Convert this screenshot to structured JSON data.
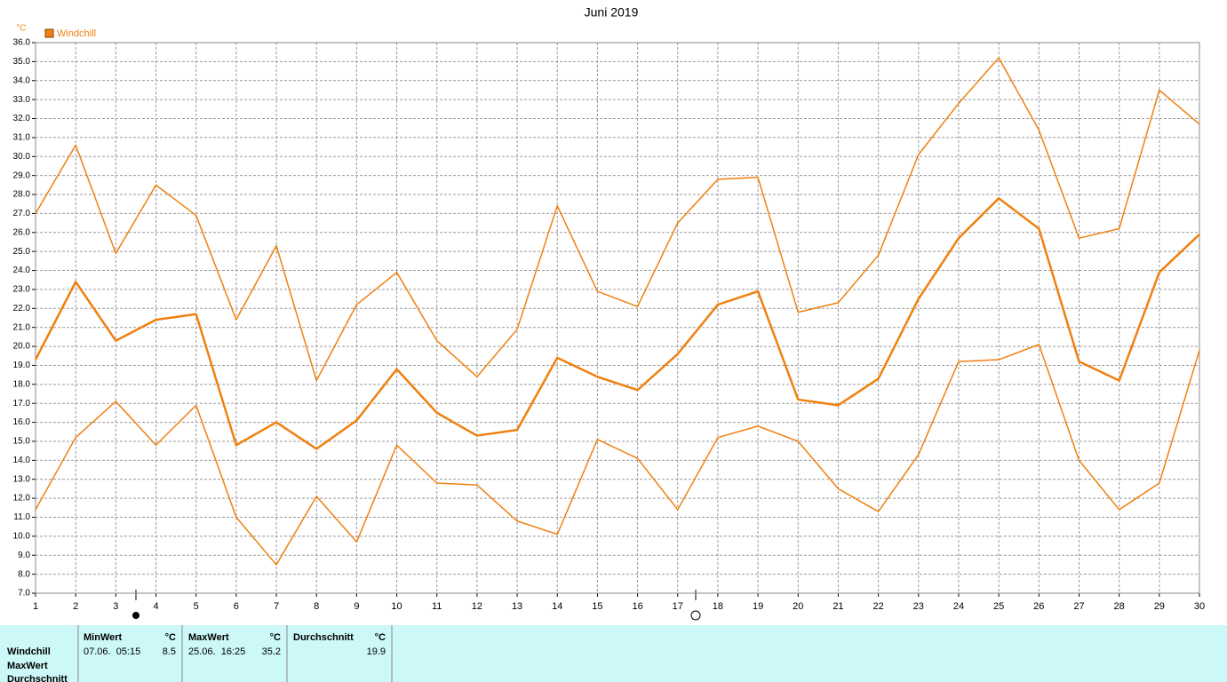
{
  "chart_data": {
    "type": "line",
    "title": "Juni 2019",
    "y_unit": "°C",
    "categories": [
      "1",
      "2",
      "3",
      "4",
      "5",
      "6",
      "7",
      "8",
      "9",
      "10",
      "11",
      "12",
      "13",
      "14",
      "15",
      "16",
      "17",
      "18",
      "19",
      "20",
      "21",
      "22",
      "23",
      "24",
      "25",
      "26",
      "27",
      "28",
      "29",
      "30"
    ],
    "series": [
      {
        "name": "Windchill",
        "color": "#f08010",
        "width": 2.5,
        "values": [
          19.3,
          23.4,
          20.3,
          21.4,
          21.7,
          14.8,
          16.0,
          14.6,
          16.1,
          18.8,
          16.5,
          15.3,
          15.6,
          19.4,
          18.4,
          17.7,
          19.6,
          22.2,
          22.9,
          17.2,
          16.9,
          18.3,
          22.5,
          25.7,
          27.8,
          26.2,
          19.2,
          18.2,
          23.9,
          25.9
        ]
      },
      {
        "color": "#f08010",
        "width": 1.5,
        "values": [
          27.0,
          30.6,
          24.9,
          28.5,
          26.9,
          21.4,
          25.3,
          18.2,
          22.2,
          23.9,
          20.3,
          18.4,
          20.9,
          27.4,
          22.9,
          22.1,
          26.5,
          28.8,
          28.9,
          21.8,
          22.3,
          24.8,
          30.1,
          32.8,
          35.2,
          31.4,
          25.7,
          26.2,
          33.5,
          31.7
        ]
      },
      {
        "color": "#f08010",
        "width": 1.5,
        "values": [
          11.4,
          15.2,
          17.1,
          14.8,
          16.9,
          11.0,
          8.5,
          12.1,
          9.7,
          14.8,
          12.8,
          12.7,
          10.8,
          10.1,
          15.1,
          14.1,
          11.4,
          15.2,
          15.8,
          15.0,
          12.5,
          11.3,
          14.3,
          19.2,
          19.3,
          20.1,
          14.0,
          11.4,
          12.8,
          19.8
        ]
      }
    ],
    "ylim": [
      7,
      36
    ],
    "yticks": [
      {
        "value": 7,
        "label": "7.0"
      },
      {
        "value": 8,
        "label": "8.0"
      },
      {
        "value": 9,
        "label": "9.0"
      },
      {
        "value": 10,
        "label": "10.0"
      },
      {
        "value": 11,
        "label": "11.0"
      },
      {
        "value": 12,
        "label": "12.0"
      },
      {
        "value": 13,
        "label": "13.0"
      },
      {
        "value": 14,
        "label": "14.0"
      },
      {
        "value": 15,
        "label": "15.0"
      },
      {
        "value": 16,
        "label": "16.0"
      },
      {
        "value": 17,
        "label": "17.0"
      },
      {
        "value": 18,
        "label": "18.0"
      },
      {
        "value": 19,
        "label": "19.0"
      },
      {
        "value": 20,
        "label": "20.0"
      },
      {
        "value": 21,
        "label": "21.0"
      },
      {
        "value": 22,
        "label": "22.0"
      },
      {
        "value": 23,
        "label": "23.0"
      },
      {
        "value": 24,
        "label": "24.0"
      },
      {
        "value": 25,
        "label": "25.0"
      },
      {
        "value": 26,
        "label": "26.0"
      },
      {
        "value": 27,
        "label": "27.0"
      },
      {
        "value": 28,
        "label": "28.0"
      },
      {
        "value": 29,
        "label": "29.0"
      },
      {
        "value": 30,
        "label": "30.0"
      },
      {
        "value": 31,
        "label": "31.0"
      },
      {
        "value": 32,
        "label": "32.0"
      },
      {
        "value": 33,
        "label": "33.0"
      },
      {
        "value": 34,
        "label": "34.0"
      },
      {
        "value": 35,
        "label": "35.0"
      },
      {
        "value": 36,
        "label": "36.0"
      }
    ],
    "grid": true
  },
  "stats": {
    "row_labels": [
      "Windchill",
      "MaxWert",
      "Durchschnitt"
    ],
    "columns": [
      {
        "header": "MinWert",
        "unit": "°C",
        "time": "07.06.  05:15",
        "value": 8.5
      },
      {
        "header": "MaxWert",
        "unit": "°C",
        "time": "25.06.  16:25",
        "value": 35.2
      },
      {
        "header": "Durchschnitt",
        "unit": "°C",
        "value": 19.9
      }
    ]
  }
}
